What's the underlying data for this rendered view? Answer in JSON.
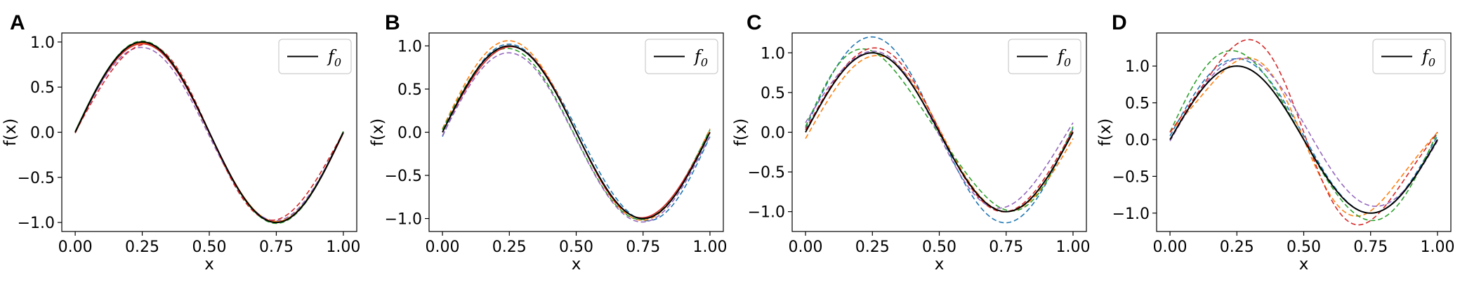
{
  "figure": {
    "panel_letters": [
      "A",
      "B",
      "C",
      "D"
    ]
  },
  "colors": {
    "true_function": "#000000",
    "blue": "#1f77b4",
    "orange": "#ff7f0e",
    "green": "#2ca02c",
    "red": "#d62728",
    "purple": "#9467bd"
  },
  "chart_data": [
    {
      "panel": "A",
      "type": "line",
      "xlabel": "x",
      "ylabel": "f(x)",
      "xlim": [
        -0.05,
        1.05
      ],
      "ylim": [
        -1.1,
        1.1
      ],
      "xticks": [
        0,
        0.25,
        0.5,
        0.75,
        1
      ],
      "xtick_labels": [
        "0.00",
        "0.25",
        "0.50",
        "0.75",
        "1.00"
      ],
      "yticks": [
        -1,
        -0.5,
        0,
        0.5,
        1
      ],
      "ytick_labels": [
        "−1.0",
        "−0.5",
        "0.0",
        "0.5",
        "1.0"
      ],
      "legend": {
        "label": "f",
        "subscript": "0",
        "position": "top-right"
      },
      "true_function": {
        "name": "f0",
        "formula": "sin(2*pi*x)",
        "style": "solid",
        "color": "#000000"
      },
      "series": [
        {
          "color": "#1f77b4",
          "style": "solid",
          "a": 0,
          "amp": 1.0,
          "b1": 0,
          "b2": 0
        },
        {
          "color": "#ff7f0e",
          "style": "solid",
          "a": 0,
          "amp": 0.99,
          "b1": 0,
          "b2": 0
        },
        {
          "color": "#2ca02c",
          "style": "solid",
          "a": 0,
          "amp": 1.0,
          "b1": 0,
          "b2": 0.01
        },
        {
          "color": "#d62728",
          "style": "solid",
          "a": -0.01,
          "amp": 0.99,
          "b1": 0,
          "b2": 0
        },
        {
          "color": "#9467bd",
          "style": "dashed",
          "a": -0.02,
          "amp": 0.96,
          "b1": 0,
          "b2": 0.02
        },
        {
          "color": "#d62728",
          "style": "dashed",
          "a": 0,
          "amp": 0.97,
          "b1": -0.05,
          "b2": 0
        },
        {
          "color": "#2ca02c",
          "style": "dashed",
          "a": 0,
          "amp": 1.01,
          "b1": 0,
          "b2": 0
        }
      ]
    },
    {
      "panel": "B",
      "type": "line",
      "xlabel": "x",
      "ylabel": "f(x)",
      "xlim": [
        -0.05,
        1.05
      ],
      "ylim": [
        -1.15,
        1.15
      ],
      "xticks": [
        0,
        0.25,
        0.5,
        0.75,
        1
      ],
      "xtick_labels": [
        "0.00",
        "0.25",
        "0.50",
        "0.75",
        "1.00"
      ],
      "yticks": [
        -1,
        -0.5,
        0,
        0.5,
        1
      ],
      "ytick_labels": [
        "−1.0",
        "−0.5",
        "0.0",
        "0.5",
        "1.0"
      ],
      "legend": {
        "label": "f",
        "subscript": "0",
        "position": "top-right"
      },
      "true_function": {
        "name": "f0",
        "formula": "sin(2*pi*x)",
        "style": "solid",
        "color": "#000000"
      },
      "series": [
        {
          "color": "#1f77b4",
          "style": "dashed",
          "a": 0,
          "amp": 1.02,
          "b1": 0.03,
          "b2": -0.05
        },
        {
          "color": "#ff7f0e",
          "style": "dashed",
          "a": 0.02,
          "amp": 1.04,
          "b1": 0,
          "b2": 0.02
        },
        {
          "color": "#2ca02c",
          "style": "dashed",
          "a": -0.02,
          "amp": 0.99,
          "b1": 0,
          "b2": 0.05
        },
        {
          "color": "#d62728",
          "style": "solid",
          "a": 0,
          "amp": 0.99,
          "b1": -0.02,
          "b2": 0
        },
        {
          "color": "#9467bd",
          "style": "dashed",
          "a": -0.06,
          "amp": 0.98,
          "b1": 0,
          "b2": 0.02
        }
      ]
    },
    {
      "panel": "C",
      "type": "line",
      "xlabel": "x",
      "ylabel": "f(x)",
      "xlim": [
        -0.05,
        1.05
      ],
      "ylim": [
        -1.25,
        1.25
      ],
      "xticks": [
        0,
        0.25,
        0.5,
        0.75,
        1
      ],
      "xtick_labels": [
        "0.00",
        "0.25",
        "0.50",
        "0.75",
        "1.00"
      ],
      "yticks": [
        -1,
        -0.5,
        0,
        0.5,
        1
      ],
      "ytick_labels": [
        "−1.0",
        "−0.5",
        "0.0",
        "0.5",
        "1.0"
      ],
      "legend": {
        "label": "f",
        "subscript": "0",
        "position": "top-right"
      },
      "true_function": {
        "name": "f0",
        "formula": "sin(2*pi*x)",
        "style": "solid",
        "color": "#000000"
      },
      "series": [
        {
          "color": "#1f77b4",
          "style": "dashed",
          "a": 0.03,
          "amp": 1.17,
          "b1": 0,
          "b2": 0.02
        },
        {
          "color": "#ff7f0e",
          "style": "dashed",
          "a": -0.02,
          "amp": 0.98,
          "b1": -0.02,
          "b2": -0.06
        },
        {
          "color": "#2ca02c",
          "style": "dashed",
          "a": 0.02,
          "amp": 1.0,
          "b1": 0.1,
          "b2": 0.05
        },
        {
          "color": "#d62728",
          "style": "dashed",
          "a": 0.03,
          "amp": 1.03,
          "b1": -0.03,
          "b2": 0
        },
        {
          "color": "#9467bd",
          "style": "dashed",
          "a": 0.04,
          "amp": 0.98,
          "b1": -0.05,
          "b2": 0.08
        }
      ]
    },
    {
      "panel": "D",
      "type": "line",
      "xlabel": "x",
      "ylabel": "f(x)",
      "xlim": [
        -0.05,
        1.05
      ],
      "ylim": [
        -1.25,
        1.45
      ],
      "xticks": [
        0,
        0.25,
        0.5,
        0.75,
        1
      ],
      "xtick_labels": [
        "0.00",
        "0.25",
        "0.50",
        "0.75",
        "1.00"
      ],
      "yticks": [
        -1,
        -0.5,
        0,
        0.5,
        1
      ],
      "ytick_labels": [
        "−1.0",
        "−0.5",
        "0.0",
        "0.5",
        "1.0"
      ],
      "legend": {
        "label": "f",
        "subscript": "0",
        "position": "top-right"
      },
      "true_function": {
        "name": "f0",
        "formula": "sin(2*pi*x)",
        "style": "solid",
        "color": "#000000"
      },
      "series": [
        {
          "color": "#1f77b4",
          "style": "dashed",
          "a": 0.05,
          "amp": 1.05,
          "b1": 0,
          "b2": 0
        },
        {
          "color": "#ff7f0e",
          "style": "dashed",
          "a": 0.05,
          "amp": 1.02,
          "b1": -0.18,
          "b2": 0.05
        },
        {
          "color": "#2ca02c",
          "style": "dashed",
          "a": 0.05,
          "amp": 1.15,
          "b1": 0.05,
          "b2": 0.05
        },
        {
          "color": "#d62728",
          "style": "dashed",
          "a": 0.1,
          "amp": 1.2,
          "b1": -0.2,
          "b2": 0
        },
        {
          "color": "#9467bd",
          "style": "dashed",
          "a": 0.1,
          "amp": 1.0,
          "b1": 0,
          "b2": -0.12
        }
      ]
    }
  ]
}
